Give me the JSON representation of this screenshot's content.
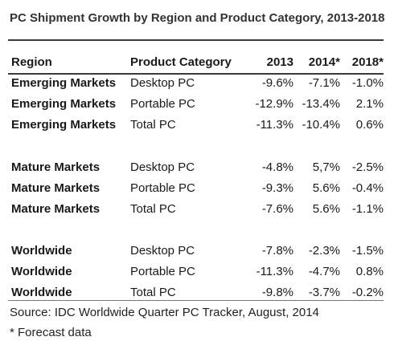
{
  "title": "PC Shipment Growth by Region and Product Category, 2013-2018",
  "columns": [
    "Region",
    "Product Category",
    "2013",
    "2014*",
    "2018*"
  ],
  "rows": [
    [
      "Emerging Markets",
      "Desktop PC",
      "-9.6%",
      "-7.1%",
      "-1.0%"
    ],
    [
      "Emerging Markets",
      "Portable PC",
      "-12.9%",
      "-13.4%",
      "2.1%"
    ],
    [
      "Emerging Markets",
      "Total PC",
      "-11.3%",
      "-10.4%",
      "0.6%"
    ],
    [
      "Mature Markets",
      "Desktop PC",
      "-4.8%",
      "5,7%",
      "-2.5%"
    ],
    [
      "Mature Markets",
      "Portable PC",
      "-9.3%",
      "5.6%",
      "-0.4%"
    ],
    [
      "Mature Markets",
      "Total PC",
      "-7.6%",
      "5.6%",
      "-1.1%"
    ],
    [
      "Worldwide",
      "Desktop PC",
      "-7.8%",
      "-2.3%",
      "-1.5%"
    ],
    [
      "Worldwide",
      "Portable PC",
      "-11.3%",
      "-4.7%",
      "0.8%"
    ],
    [
      "Worldwide",
      "Total PC",
      "-9.8%",
      "-3.7%",
      "-0.2%"
    ]
  ],
  "source": "Source: IDC Worldwide Quarter PC Tracker, August, 2014",
  "note": "* Forecast data"
}
